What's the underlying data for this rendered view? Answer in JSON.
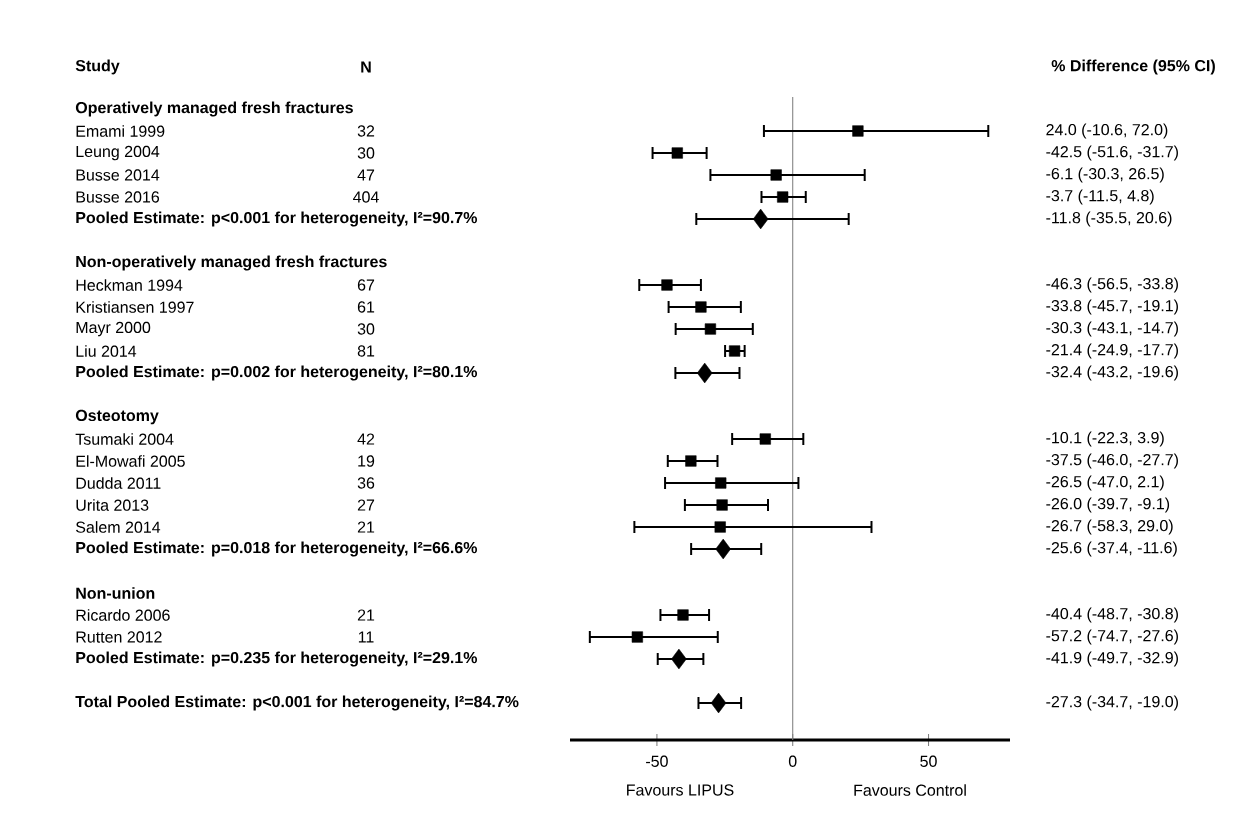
{
  "chart_data": {
    "type": "scatter",
    "orientation": "horizontal",
    "categories": [
      "Operatively managed fresh fractures",
      "Emami 1999",
      "Leung 2004",
      "Busse 2014",
      "Busse 2016",
      "Pooled Estimate: p<0.001 for heterogeneity, I²=90.7%",
      null,
      "Non-operatively managed fresh fractures",
      "Heckman 1994",
      "Kristiansen 1997",
      "Mayr 2000",
      "Liu 2014",
      "Pooled Estimate: p=0.002 for heterogeneity, I²=80.1%",
      null,
      "Osteotomy",
      "Tsumaki 2004",
      "El-Mowafi 2005",
      "Dudda 2011",
      "Urita 2013",
      "Salem 2014",
      "Pooled Estimate: p=0.018 for heterogeneity, I²=66.6%",
      null,
      "Non-union",
      "Ricardo 2006",
      "Rutten 2012",
      "Pooled Estimate: p=0.235 for heterogeneity, I²=29.1%",
      null,
      "Total Pooled Estimate: p<0.001 for heterogeneity, I²=84.7%"
    ],
    "series": [
      {
        "color": "#000000",
        "marker": "square",
        "values": [
          null,
          24.0,
          -42.5,
          -6.1,
          -3.7,
          null,
          null,
          null,
          -46.3,
          -33.8,
          -30.3,
          -21.4,
          null,
          null,
          null,
          -10.1,
          -37.5,
          -26.5,
          -26.0,
          -26.7,
          null,
          null,
          null,
          -40.4,
          -57.2,
          null,
          null,
          null
        ],
        "errors": [
          null,
          [
            -10.6,
            72.0
          ],
          [
            -51.6,
            -31.7
          ],
          [
            -30.3,
            26.5
          ],
          [
            -11.5,
            4.8
          ],
          null,
          null,
          null,
          [
            -56.5,
            -33.8
          ],
          [
            -45.7,
            -19.1
          ],
          [
            -43.1,
            -14.7
          ],
          [
            -24.9,
            -17.7
          ],
          null,
          null,
          null,
          [
            -22.3,
            3.9
          ],
          [
            -46.0,
            -27.7
          ],
          [
            -47.0,
            2.1
          ],
          [
            -39.7,
            -9.1
          ],
          [
            -58.3,
            29.0
          ],
          null,
          null,
          null,
          [
            -48.7,
            -30.8
          ],
          [
            -74.7,
            -27.6
          ],
          null,
          null,
          null
        ]
      },
      {
        "color": "#000000",
        "marker": "diamond",
        "values": [
          null,
          null,
          null,
          null,
          null,
          -11.8,
          null,
          null,
          null,
          null,
          null,
          null,
          -32.4,
          null,
          null,
          null,
          null,
          null,
          null,
          null,
          -25.6,
          null,
          null,
          null,
          null,
          -41.9,
          null,
          -27.3
        ],
        "errors": [
          null,
          null,
          null,
          null,
          null,
          [
            -35.5,
            20.6
          ],
          null,
          null,
          null,
          null,
          null,
          null,
          [
            -43.2,
            -19.6
          ],
          null,
          null,
          null,
          null,
          null,
          null,
          null,
          [
            -37.4,
            -11.6
          ],
          null,
          null,
          null,
          null,
          [
            -49.7,
            -32.9
          ],
          null,
          [
            -34.7,
            -19.0
          ]
        ]
      }
    ],
    "xlim": [
      -82,
      80
    ],
    "xticks": [
      -50,
      0,
      50
    ],
    "ref_lines": [
      {
        "axis": "x",
        "value": 0,
        "color": "#808080"
      }
    ],
    "annotations": [
      "Study",
      "N",
      "% Difference  (95% CI)",
      "Favours LIPUS",
      "Favours Control",
      "32",
      "30",
      "47",
      "404",
      "67",
      "61",
      "30",
      "81",
      "42",
      "19",
      "36",
      "27",
      "21",
      "21",
      "11",
      "24.0 (-10.6, 72.0)",
      "-42.5 (-51.6, -31.7)",
      "-6.1 (-30.3, 26.5)",
      "-3.7 (-11.5, 4.8)",
      "-11.8 (-35.5, 20.6)",
      "-46.3 (-56.5, -33.8)",
      "-33.8 (-45.7, -19.1)",
      "-30.3 (-43.1, -14.7)",
      "-21.4 (-24.9, -17.7)",
      "-32.4 (-43.2, -19.6)",
      "-10.1 (-22.3, 3.9)",
      "-37.5 (-46.0, -27.7)",
      "-26.5 (-47.0, 2.1)",
      "-26.0 (-39.7, -9.1)",
      "-26.7 (-58.3, 29.0)",
      "-25.6 (-37.4, -11.6)",
      "-40.4 (-48.7, -30.8)",
      "-57.2 (-74.7, -27.6)",
      "-41.9 (-49.7, -32.9)",
      "-27.3 (-34.7, -19.0)"
    ]
  }
}
